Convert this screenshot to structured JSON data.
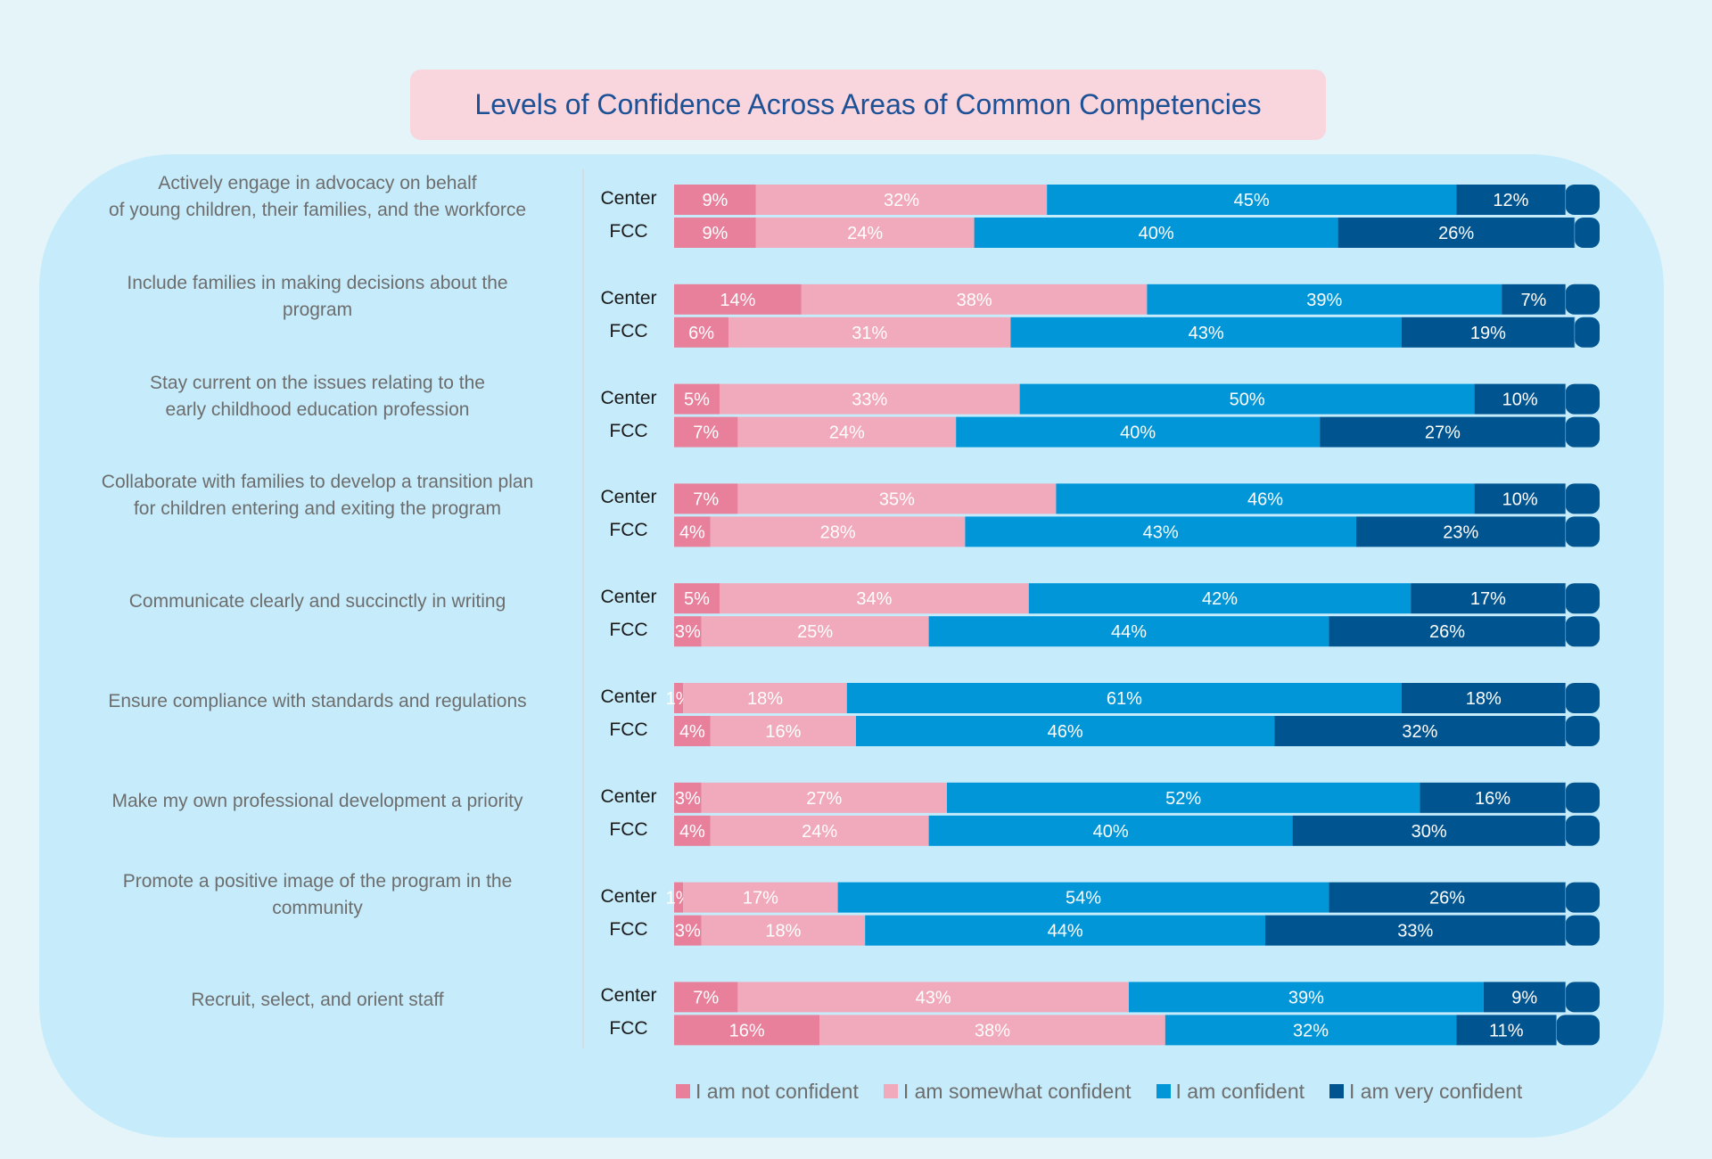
{
  "chart_data": {
    "type": "bar",
    "orientation": "horizontal",
    "stacked": true,
    "title": "Levels of Confidence Across Areas of Common Competencies",
    "groups": [
      "Center",
      "FCC"
    ],
    "colors": [
      "#e8809b",
      "#f1aabb",
      "#0096d8",
      "#005591"
    ],
    "legend": [
      "I am not confident",
      "I am somewhat confident",
      "I am confident",
      "I am very confident"
    ],
    "legend_position": "bottom",
    "categories": [
      {
        "label": "Actively engage in advocacy on behalf of young children, their families, and the workforce",
        "lines": [
          "Actively engage in advocacy on behalf",
          "of young children, their families, and the workforce"
        ],
        "center": [
          9,
          32,
          45,
          12
        ],
        "fcc": [
          9,
          24,
          40,
          26
        ]
      },
      {
        "label": "Include families in making decisions about the program",
        "lines": [
          "Include families in making decisions about the",
          "program"
        ],
        "center": [
          14,
          38,
          39,
          7
        ],
        "fcc": [
          6,
          31,
          43,
          19
        ]
      },
      {
        "label": "Stay current on the issues relating to the early childhood education profession",
        "lines": [
          "Stay current on the issues relating to the",
          "early childhood education profession"
        ],
        "center": [
          5,
          33,
          50,
          10
        ],
        "fcc": [
          7,
          24,
          40,
          27
        ]
      },
      {
        "label": "Collaborate with families to develop a transition plan for children entering and exiting the program",
        "lines": [
          "Collaborate with families to develop a transition plan",
          "for children entering and exiting the program"
        ],
        "center": [
          7,
          35,
          46,
          10
        ],
        "fcc": [
          4,
          28,
          43,
          23
        ]
      },
      {
        "label": "Communicate clearly and succinctly in writing",
        "lines": [
          "Communicate clearly and succinctly in writing"
        ],
        "center": [
          5,
          34,
          42,
          17
        ],
        "fcc": [
          3,
          25,
          44,
          26
        ]
      },
      {
        "label": "Ensure compliance with standards and regulations",
        "lines": [
          "Ensure compliance with standards and regulations"
        ],
        "center": [
          1,
          18,
          61,
          18
        ],
        "fcc": [
          4,
          16,
          46,
          32
        ]
      },
      {
        "label": "Make my own professional development a priority",
        "lines": [
          "Make my own professional development a priority"
        ],
        "center": [
          3,
          27,
          52,
          16
        ],
        "fcc": [
          4,
          24,
          40,
          30
        ]
      },
      {
        "label": "Promote a positive image of the program in the community",
        "lines": [
          "Promote a positive image of the program in the",
          "community"
        ],
        "center": [
          1,
          17,
          54,
          26
        ],
        "fcc": [
          3,
          18,
          44,
          33
        ]
      },
      {
        "label": "Recruit, select, and orient staff",
        "lines": [
          "Recruit, select, and orient staff"
        ],
        "center": [
          7,
          43,
          39,
          9
        ],
        "fcc": [
          16,
          38,
          32,
          11
        ]
      }
    ]
  }
}
